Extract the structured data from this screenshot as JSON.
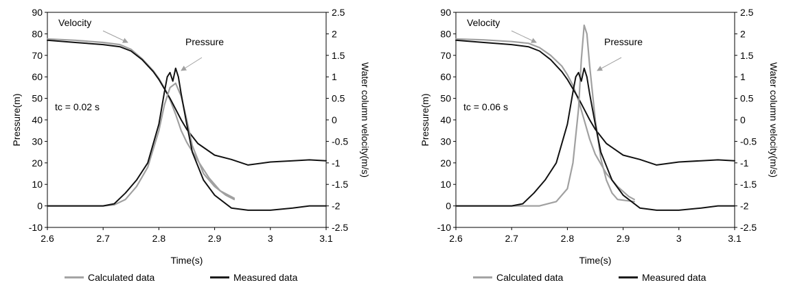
{
  "colors": {
    "calculated": "#a0a0a0",
    "measured": "#111111",
    "axis": "#000000",
    "arrow": "#a0a0a0"
  },
  "legend": {
    "calculated": "Calculated data",
    "measured": "Measured data",
    "placement": "bottom"
  },
  "chart_data": [
    {
      "type": "line",
      "xlabel": "Time(s)",
      "ylabel": "Pressure(m)",
      "y2label": "Water column velocity(m/s)",
      "xlim": [
        2.6,
        3.1
      ],
      "ylim": [
        -10,
        90
      ],
      "y2lim": [
        -2.5,
        2.5
      ],
      "xticks": [
        "2.6",
        "2.7",
        "2.8",
        "2.9",
        "3",
        "3.1"
      ],
      "yticks": [
        "-10",
        "0",
        "10",
        "20",
        "30",
        "40",
        "50",
        "60",
        "70",
        "80",
        "90"
      ],
      "y2ticks": [
        "-2.5",
        "-2",
        "-1.5",
        "-1",
        "-0.5",
        "0",
        "0.5",
        "1",
        "1.5",
        "2",
        "2.5"
      ],
      "annotations": {
        "velocity": "Velocity",
        "pressure": "Pressure",
        "tc": "tc = 0.02  s"
      },
      "series": [
        {
          "name": "Calculated data",
          "quantity": "velocity",
          "axis": "y2",
          "x": [
            2.6,
            2.65,
            2.7,
            2.73,
            2.75,
            2.77,
            2.79,
            2.8,
            2.81,
            2.82,
            2.83,
            2.84,
            2.85,
            2.87,
            2.89,
            2.91,
            2.935
          ],
          "y": [
            1.88,
            1.85,
            1.8,
            1.75,
            1.64,
            1.42,
            1.14,
            0.96,
            0.74,
            0.47,
            0.13,
            -0.25,
            -0.52,
            -0.95,
            -1.35,
            -1.65,
            -1.82
          ]
        },
        {
          "name": "Measured data",
          "quantity": "velocity",
          "axis": "y2",
          "x": [
            2.6,
            2.65,
            2.7,
            2.73,
            2.75,
            2.77,
            2.79,
            2.8,
            2.81,
            2.82,
            2.83,
            2.84,
            2.85,
            2.87,
            2.9,
            2.93,
            2.96,
            3.0,
            3.04,
            3.07,
            3.1
          ],
          "y": [
            1.85,
            1.8,
            1.75,
            1.7,
            1.6,
            1.4,
            1.12,
            0.94,
            0.72,
            0.5,
            0.25,
            0.0,
            -0.22,
            -0.55,
            -0.82,
            -0.92,
            -1.05,
            -0.98,
            -0.95,
            -0.93,
            -0.95
          ]
        },
        {
          "name": "Calculated data",
          "quantity": "pressure",
          "axis": "y",
          "x": [
            2.6,
            2.7,
            2.72,
            2.74,
            2.76,
            2.78,
            2.8,
            2.81,
            2.82,
            2.83,
            2.84,
            2.85,
            2.86,
            2.88,
            2.9,
            2.92,
            2.935
          ],
          "y": [
            0,
            0,
            0.5,
            3,
            9,
            18,
            35,
            47,
            55,
            57,
            51,
            40,
            28,
            15,
            9,
            5,
            3
          ]
        },
        {
          "name": "Measured data",
          "quantity": "pressure",
          "axis": "y",
          "x": [
            2.6,
            2.7,
            2.72,
            2.74,
            2.76,
            2.78,
            2.8,
            2.81,
            2.815,
            2.82,
            2.825,
            2.83,
            2.835,
            2.84,
            2.85,
            2.86,
            2.88,
            2.9,
            2.93,
            2.96,
            3.0,
            3.04,
            3.07,
            3.1
          ],
          "y": [
            0,
            0,
            1,
            6,
            12,
            20,
            38,
            53,
            60,
            62,
            58,
            64,
            60,
            52,
            38,
            25,
            12,
            5,
            -1,
            -2,
            -2,
            -1,
            0,
            0
          ]
        }
      ]
    },
    {
      "type": "line",
      "xlabel": "Time(s)",
      "ylabel": "Pressure(m)",
      "y2label": "Water column velocity(m/s)",
      "xlim": [
        2.6,
        3.1
      ],
      "ylim": [
        -10,
        90
      ],
      "y2lim": [
        -2.5,
        2.5
      ],
      "xticks": [
        "2.6",
        "2.7",
        "2.8",
        "2.9",
        "3",
        "3.1"
      ],
      "yticks": [
        "-10",
        "0",
        "10",
        "20",
        "30",
        "40",
        "50",
        "60",
        "70",
        "80",
        "90"
      ],
      "y2ticks": [
        "-2.5",
        "-2",
        "-1.5",
        "-1",
        "-0.5",
        "0",
        "0.5",
        "1",
        "1.5",
        "2",
        "2.5"
      ],
      "annotations": {
        "velocity": "Velocity",
        "pressure": "Pressure",
        "tc": "tc = 0.06  s"
      },
      "series": [
        {
          "name": "Calculated data",
          "quantity": "velocity",
          "axis": "y2",
          "x": [
            2.6,
            2.65,
            2.7,
            2.73,
            2.75,
            2.77,
            2.79,
            2.8,
            2.81,
            2.82,
            2.83,
            2.84,
            2.85,
            2.87,
            2.89,
            2.91,
            2.92
          ],
          "y": [
            1.88,
            1.86,
            1.82,
            1.78,
            1.68,
            1.5,
            1.25,
            1.05,
            0.8,
            0.45,
            0.0,
            -0.45,
            -0.8,
            -1.25,
            -1.55,
            -1.78,
            -1.85
          ]
        },
        {
          "name": "Measured data",
          "quantity": "velocity",
          "axis": "y2",
          "x": [
            2.6,
            2.65,
            2.7,
            2.73,
            2.75,
            2.77,
            2.79,
            2.8,
            2.81,
            2.82,
            2.83,
            2.84,
            2.85,
            2.87,
            2.9,
            2.93,
            2.96,
            3.0,
            3.04,
            3.07,
            3.1
          ],
          "y": [
            1.85,
            1.8,
            1.75,
            1.7,
            1.6,
            1.4,
            1.12,
            0.94,
            0.72,
            0.5,
            0.25,
            0.0,
            -0.22,
            -0.55,
            -0.82,
            -0.92,
            -1.05,
            -0.98,
            -0.95,
            -0.93,
            -0.95
          ]
        },
        {
          "name": "Calculated data",
          "quantity": "pressure",
          "axis": "y",
          "x": [
            2.6,
            2.75,
            2.78,
            2.8,
            2.81,
            2.82,
            2.825,
            2.83,
            2.835,
            2.84,
            2.85,
            2.86,
            2.87,
            2.88,
            2.89,
            2.92
          ],
          "y": [
            0,
            0,
            2,
            8,
            20,
            45,
            68,
            84,
            80,
            65,
            40,
            22,
            12,
            6,
            3,
            2
          ]
        },
        {
          "name": "Measured data",
          "quantity": "pressure",
          "axis": "y",
          "x": [
            2.6,
            2.7,
            2.72,
            2.74,
            2.76,
            2.78,
            2.8,
            2.81,
            2.815,
            2.82,
            2.825,
            2.83,
            2.835,
            2.84,
            2.85,
            2.86,
            2.88,
            2.9,
            2.93,
            2.96,
            3.0,
            3.04,
            3.07,
            3.1
          ],
          "y": [
            0,
            0,
            1,
            6,
            12,
            20,
            38,
            53,
            60,
            62,
            58,
            64,
            60,
            52,
            38,
            25,
            12,
            5,
            -1,
            -2,
            -2,
            -1,
            0,
            0
          ]
        }
      ]
    }
  ]
}
